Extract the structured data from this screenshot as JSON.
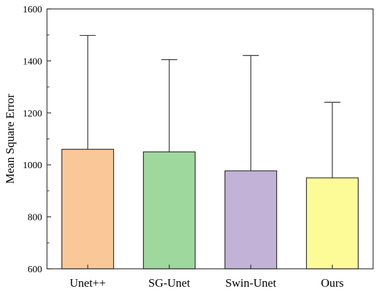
{
  "chart_data": {
    "type": "bar",
    "categories": [
      "Unet++",
      "SG-Unet",
      "Swin-Unet",
      "Ours"
    ],
    "values": [
      1060,
      1050,
      977,
      950
    ],
    "error_upper": [
      1498,
      1405,
      1421,
      1241
    ],
    "colors": [
      "#fac898",
      "#9ed89c",
      "#c3b2d8",
      "#fdfb98"
    ],
    "title": "",
    "xlabel": "",
    "ylabel": "Mean Square Error",
    "ylim": [
      600,
      1600
    ],
    "yticks": [
      600,
      800,
      1000,
      1200,
      1400,
      1600
    ],
    "y_minor_step": 100,
    "grid": false,
    "legend": "none"
  }
}
